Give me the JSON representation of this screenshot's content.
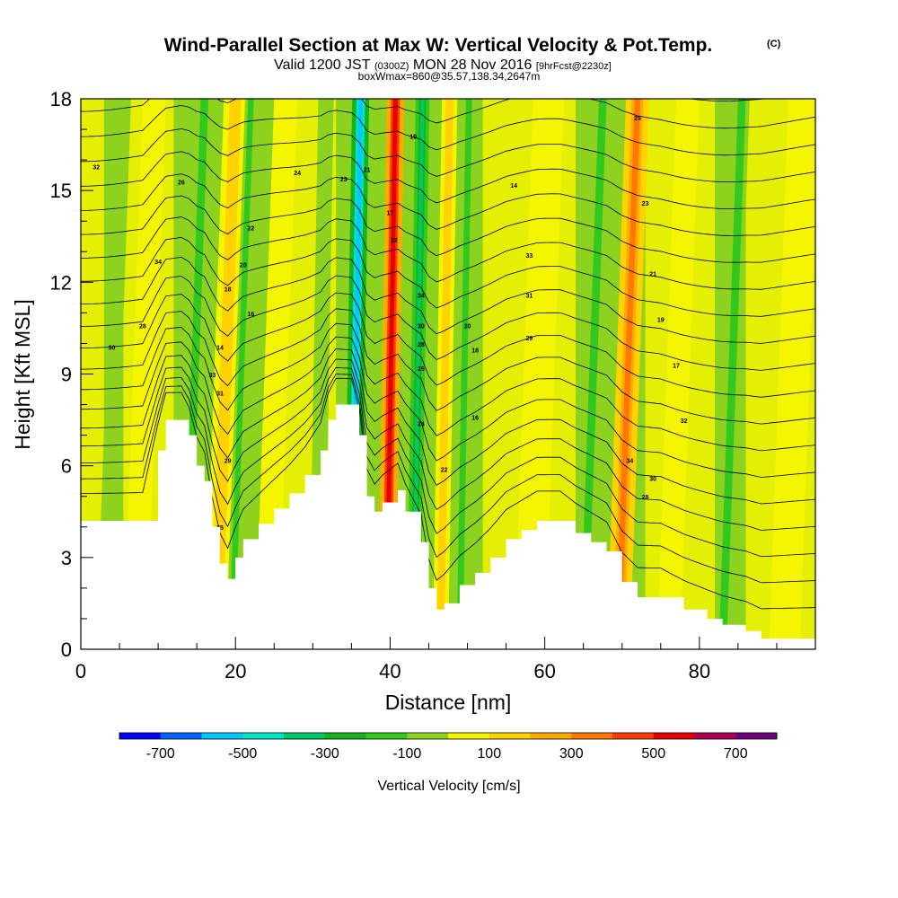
{
  "chart_data": {
    "type": "heatmap",
    "title": "Wind-Parallel Section at Max W: Vertical Velocity & Pot.Temp.",
    "title_mark": "(C)",
    "subtitle": {
      "valid": "Valid 1200 JST",
      "utc": "(0300Z)",
      "date": "MON 28 Nov 2016",
      "forecast": "[9hrFcst@2230z]"
    },
    "subtitle2": "boxWmax=860@35.57,138.34,2647m",
    "xlabel": "Distance [nm]",
    "ylabel": "Height [Kft MSL]",
    "xlim": [
      0,
      95
    ],
    "ylim": [
      0,
      18
    ],
    "x_ticks": [
      0,
      20,
      40,
      60,
      80
    ],
    "y_ticks": [
      0,
      3,
      6,
      9,
      12,
      15,
      18
    ],
    "colorbar": {
      "label": "Vertical Velocity [cm/s]",
      "tick_labels": [
        "-700",
        "-500",
        "-300",
        "-100",
        "100",
        "300",
        "500",
        "700"
      ],
      "levels": [
        -800,
        -700,
        -600,
        -500,
        -400,
        -300,
        -200,
        -100,
        0,
        100,
        200,
        300,
        400,
        500,
        600,
        700,
        800
      ],
      "colors": [
        "#0000ff",
        "#0064ff",
        "#00c8ff",
        "#00e6c8",
        "#00c864",
        "#14b41e",
        "#32c81e",
        "#8cd21e",
        "#f5f500",
        "#ffd200",
        "#ffaa00",
        "#ff7800",
        "#ff3c00",
        "#e60000",
        "#aa0050",
        "#6e007d"
      ]
    },
    "terrain_kft": [
      [
        0,
        4.2
      ],
      [
        4,
        4.2
      ],
      [
        8,
        4.2
      ],
      [
        10,
        6.5
      ],
      [
        11,
        7.5
      ],
      [
        13,
        7.5
      ],
      [
        14,
        7
      ],
      [
        15,
        6
      ],
      [
        16,
        5.5
      ],
      [
        17,
        4
      ],
      [
        18,
        2.8
      ],
      [
        19,
        2.3
      ],
      [
        20,
        3
      ],
      [
        21,
        3.6
      ],
      [
        23,
        4.1
      ],
      [
        25,
        4.6
      ],
      [
        27,
        5.1
      ],
      [
        29,
        5.7
      ],
      [
        31,
        6.5
      ],
      [
        32,
        7.5
      ],
      [
        33,
        8
      ],
      [
        35,
        8
      ],
      [
        36,
        7
      ],
      [
        37,
        5
      ],
      [
        38,
        4.5
      ],
      [
        39,
        4.8
      ],
      [
        41,
        5.2
      ],
      [
        42,
        4.5
      ],
      [
        44,
        3.5
      ],
      [
        45,
        2
      ],
      [
        46,
        1.3
      ],
      [
        47,
        1.5
      ],
      [
        49,
        2.1
      ],
      [
        51,
        2.5
      ],
      [
        53,
        3
      ],
      [
        55,
        3.6
      ],
      [
        57,
        3.9
      ],
      [
        59,
        4.2
      ],
      [
        62,
        4.2
      ],
      [
        64,
        3.8
      ],
      [
        66,
        3.5
      ],
      [
        68,
        3.2
      ],
      [
        70,
        2.2
      ],
      [
        72,
        1.7
      ],
      [
        75,
        1.7
      ],
      [
        78,
        1.3
      ],
      [
        81,
        1
      ],
      [
        83,
        0.8
      ],
      [
        86,
        0.6
      ],
      [
        88,
        0.35
      ],
      [
        95,
        0.35
      ]
    ],
    "vertical_velocity_bands": [
      {
        "x": 3,
        "w": 2,
        "value": -100
      },
      {
        "x": 7,
        "w": 3,
        "value": 100
      },
      {
        "x": 13.5,
        "w": 2,
        "value": -200
      },
      {
        "x": 17.5,
        "w": 3,
        "value": 250
      },
      {
        "x": 19.5,
        "w": 1.5,
        "value": -250
      },
      {
        "x": 24,
        "w": 3,
        "value": 100
      },
      {
        "x": 30.5,
        "w": 2,
        "value": -100
      },
      {
        "x": 35,
        "w": 2.2,
        "value": -650
      },
      {
        "x": 39.5,
        "w": 2.3,
        "value": 650
      },
      {
        "x": 43,
        "w": 1.8,
        "value": -350
      },
      {
        "x": 46.5,
        "w": 2,
        "value": 250
      },
      {
        "x": 49,
        "w": 1.6,
        "value": -250
      },
      {
        "x": 58,
        "w": 4,
        "value": 100
      },
      {
        "x": 65,
        "w": 2,
        "value": -150
      },
      {
        "x": 69.5,
        "w": 3,
        "value": 350
      },
      {
        "x": 76,
        "w": 3,
        "value": 100
      },
      {
        "x": 83,
        "w": 2,
        "value": -150
      },
      {
        "x": 91,
        "w": 4,
        "value": 100
      }
    ],
    "theta_contours_C": [
      16,
      18,
      20,
      22,
      24,
      26,
      28,
      30,
      32,
      34
    ],
    "theta_labels": [
      "32",
      "34",
      "30",
      "28",
      "26",
      "24",
      "22",
      "20",
      "18",
      "16",
      "14",
      "33",
      "31",
      "29",
      "25",
      "23",
      "21",
      "19",
      "17"
    ]
  }
}
